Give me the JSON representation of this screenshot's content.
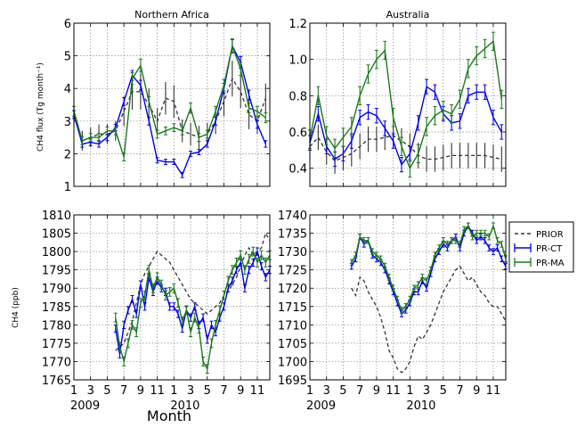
{
  "figure": {
    "xlabel": "Month",
    "ylabel_top": "CH4 flux (Tg month⁻¹)",
    "ylabel_bottom": "CH4 (ppb)",
    "month_ticks": [
      "1",
      "3",
      "5",
      "7",
      "9",
      "11",
      "1",
      "3",
      "5",
      "7",
      "9",
      "11"
    ],
    "year_labels": [
      "2009",
      "2010"
    ]
  },
  "legend": {
    "entries": [
      {
        "label": "PRIOR",
        "style": "dashed",
        "color": "#333333"
      },
      {
        "label": "PR-CT",
        "style": "errorbar",
        "color": "#0000ee"
      },
      {
        "label": "PR-MA",
        "style": "errorbar",
        "color": "#1a7a1a"
      }
    ],
    "placement": "right of bottom-right panel"
  },
  "chart_data": [
    {
      "type": "line",
      "title": "Northern  Africa",
      "ylim": [
        1,
        6
      ],
      "yticks": [
        "1",
        "2",
        "3",
        "4",
        "5",
        "6"
      ],
      "xlim": [
        1,
        24.5
      ],
      "x": [
        1,
        2,
        3,
        4,
        5,
        6,
        7,
        8,
        9,
        10,
        11,
        12,
        13,
        14,
        15,
        16,
        17,
        18,
        19,
        20,
        21,
        22,
        23,
        24
      ],
      "series": [
        {
          "name": "PRIOR",
          "style": "errorbar-dashed",
          "color": "#333333",
          "values": [
            3.3,
            2.4,
            2.5,
            2.6,
            2.6,
            2.7,
            3.3,
            3.9,
            3.9,
            3.5,
            3.0,
            3.7,
            3.6,
            2.7,
            2.6,
            2.5,
            2.6,
            3.0,
            3.6,
            4.3,
            3.9,
            3.2,
            3.0,
            3.7
          ],
          "err": [
            0.45,
            0.3,
            0.3,
            0.3,
            0.3,
            0.3,
            0.45,
            0.55,
            0.55,
            0.5,
            0.4,
            0.5,
            0.5,
            0.35,
            0.35,
            0.35,
            0.35,
            0.4,
            0.45,
            0.55,
            0.5,
            0.45,
            0.4,
            0.45
          ]
        },
        {
          "name": "PR-CT",
          "style": "errorbar",
          "color": "#0000ee",
          "values": [
            3.2,
            2.3,
            2.35,
            2.3,
            2.5,
            2.8,
            3.6,
            4.4,
            4.1,
            3.0,
            1.8,
            1.75,
            1.75,
            1.35,
            2.0,
            2.05,
            2.3,
            3.0,
            4.0,
            5.3,
            4.8,
            3.8,
            2.9,
            2.3
          ],
          "err": [
            0.12,
            0.1,
            0.1,
            0.1,
            0.1,
            0.1,
            0.12,
            0.15,
            0.15,
            0.12,
            0.08,
            0.08,
            0.08,
            0.08,
            0.08,
            0.08,
            0.1,
            0.12,
            0.15,
            0.2,
            0.18,
            0.15,
            0.12,
            0.1
          ]
        },
        {
          "name": "PR-MA",
          "style": "errorbar",
          "color": "#1a7a1a",
          "values": [
            3.3,
            2.4,
            2.5,
            2.5,
            2.7,
            2.7,
            1.9,
            4.3,
            4.7,
            3.6,
            2.6,
            2.7,
            2.8,
            2.7,
            3.4,
            2.5,
            2.6,
            3.3,
            4.1,
            5.3,
            4.6,
            3.4,
            3.3,
            3.1
          ],
          "err": [
            0.15,
            0.12,
            0.12,
            0.12,
            0.12,
            0.12,
            0.12,
            0.18,
            0.2,
            0.15,
            0.12,
            0.12,
            0.12,
            0.12,
            0.15,
            0.12,
            0.12,
            0.15,
            0.18,
            0.22,
            0.2,
            0.15,
            0.15,
            0.15
          ]
        }
      ]
    },
    {
      "type": "line",
      "title": "Australia",
      "ylim": [
        0.3,
        1.2
      ],
      "yticks": [
        "0.4",
        "0.6",
        "0.8",
        "1.0",
        "1.2"
      ],
      "xlim": [
        1,
        24.5
      ],
      "x": [
        1,
        2,
        3,
        4,
        5,
        6,
        7,
        8,
        9,
        10,
        11,
        12,
        13,
        14,
        15,
        16,
        17,
        18,
        19,
        20,
        21,
        22,
        23,
        24
      ],
      "series": [
        {
          "name": "PRIOR",
          "style": "errorbar-dashed",
          "color": "#333333",
          "values": [
            0.52,
            0.57,
            0.49,
            0.44,
            0.46,
            0.48,
            0.52,
            0.56,
            0.56,
            0.57,
            0.58,
            0.55,
            0.52,
            0.47,
            0.45,
            0.45,
            0.46,
            0.47,
            0.47,
            0.47,
            0.47,
            0.47,
            0.46,
            0.45
          ],
          "err": [
            0.07,
            0.07,
            0.07,
            0.07,
            0.07,
            0.07,
            0.07,
            0.07,
            0.07,
            0.07,
            0.07,
            0.07,
            0.07,
            0.07,
            0.07,
            0.07,
            0.07,
            0.07,
            0.07,
            0.07,
            0.07,
            0.07,
            0.07,
            0.07
          ]
        },
        {
          "name": "PR-CT",
          "style": "errorbar",
          "color": "#0000ee",
          "values": [
            0.54,
            0.7,
            0.52,
            0.45,
            0.48,
            0.55,
            0.68,
            0.71,
            0.69,
            0.62,
            0.55,
            0.42,
            0.48,
            0.65,
            0.85,
            0.82,
            0.7,
            0.65,
            0.66,
            0.8,
            0.82,
            0.82,
            0.68,
            0.6
          ],
          "err": [
            0.04,
            0.04,
            0.04,
            0.04,
            0.04,
            0.04,
            0.04,
            0.04,
            0.04,
            0.04,
            0.04,
            0.04,
            0.04,
            0.04,
            0.04,
            0.04,
            0.04,
            0.04,
            0.04,
            0.04,
            0.04,
            0.04,
            0.04,
            0.04
          ]
        },
        {
          "name": "PR-MA",
          "style": "errorbar",
          "color": "#1a7a1a",
          "values": [
            0.56,
            0.8,
            0.58,
            0.51,
            0.57,
            0.63,
            0.8,
            0.92,
            1.0,
            1.05,
            0.68,
            0.52,
            0.4,
            0.48,
            0.63,
            0.69,
            0.72,
            0.7,
            0.78,
            0.95,
            1.02,
            1.06,
            1.1,
            0.78
          ],
          "err": [
            0.05,
            0.05,
            0.05,
            0.05,
            0.05,
            0.05,
            0.05,
            0.05,
            0.05,
            0.05,
            0.05,
            0.05,
            0.05,
            0.05,
            0.05,
            0.05,
            0.05,
            0.05,
            0.05,
            0.05,
            0.05,
            0.05,
            0.05,
            0.05
          ]
        }
      ]
    },
    {
      "type": "line",
      "title": "",
      "ylim": [
        1765,
        1810
      ],
      "yticks": [
        "1765",
        "1770",
        "1775",
        "1780",
        "1785",
        "1790",
        "1795",
        "1800",
        "1805",
        "1810"
      ],
      "xlim": [
        1,
        24.5
      ],
      "x": [
        6,
        6.5,
        7,
        7.5,
        8,
        8.5,
        9,
        9.5,
        10,
        10.5,
        11,
        11.5,
        12,
        12.5,
        13,
        13.5,
        14,
        14.5,
        15,
        15.5,
        16,
        16.5,
        17,
        17.5,
        18,
        18.5,
        19,
        19.5,
        20,
        20.5,
        21,
        21.5,
        22,
        22.5,
        23,
        23.5,
        24,
        24.5
      ],
      "series": [
        {
          "name": "PRIOR",
          "style": "dashed",
          "color": "#333333",
          "values": [
            1773,
            1774,
            1775,
            1778,
            1781,
            1786,
            1791,
            1794,
            1796,
            1798,
            1800,
            1799,
            1798,
            1797,
            1795,
            1793,
            1791,
            1789,
            1787,
            1786,
            1785,
            1784,
            1783,
            1784,
            1785,
            1786,
            1788,
            1789,
            1791,
            1793,
            1796,
            1799,
            1801,
            1799,
            1800,
            1801,
            1805,
            1803
          ]
        },
        {
          "name": "PR-CT",
          "style": "errorbar",
          "color": "#0000ee",
          "values": [
            1779,
            1772,
            1780,
            1784,
            1787,
            1783,
            1791,
            1785,
            1793,
            1789,
            1792,
            1790,
            1789,
            1785,
            1785,
            1783,
            1779,
            1784,
            1782,
            1785,
            1780,
            1782,
            1776,
            1780,
            1778,
            1782,
            1785,
            1790,
            1792,
            1795,
            1797,
            1790,
            1795,
            1797,
            1800,
            1796,
            1793,
            1795
          ],
          "err": [
            1,
            1,
            1,
            1,
            1,
            1,
            1,
            1,
            1,
            1,
            1,
            1,
            1,
            1,
            1,
            1,
            1,
            1,
            1,
            1,
            1,
            1,
            1,
            1,
            1,
            1,
            1,
            1,
            1,
            1,
            1,
            1,
            1,
            1,
            1,
            1,
            1,
            1
          ]
        },
        {
          "name": "PR-MA",
          "style": "errorbar",
          "color": "#1a7a1a",
          "values": [
            1782,
            1774,
            1770,
            1775,
            1780,
            1778,
            1786,
            1788,
            1795,
            1790,
            1793,
            1791,
            1788,
            1789,
            1790,
            1786,
            1781,
            1784,
            1778,
            1782,
            1779,
            1770,
            1768,
            1775,
            1780,
            1784,
            1788,
            1792,
            1795,
            1797,
            1799,
            1795,
            1798,
            1800,
            1797,
            1799,
            1797,
            1799
          ],
          "err": [
            1.2,
            1.2,
            1.2,
            1.2,
            1.2,
            1.2,
            1.2,
            1.2,
            1.2,
            1.2,
            1.2,
            1.2,
            1.2,
            1.2,
            1.2,
            1.2,
            1.2,
            1.2,
            1.2,
            1.2,
            1.2,
            1.2,
            1.2,
            1.2,
            1.2,
            1.2,
            1.2,
            1.2,
            1.2,
            1.2,
            1.2,
            1.2,
            1.2,
            1.2,
            1.2,
            1.2,
            1.2,
            1.2
          ]
        }
      ]
    },
    {
      "type": "line",
      "title": "",
      "ylim": [
        1695,
        1740
      ],
      "yticks": [
        "1695",
        "1700",
        "1705",
        "1710",
        "1715",
        "1720",
        "1725",
        "1730",
        "1735",
        "1740"
      ],
      "xlim": [
        1,
        24.5
      ],
      "x": [
        6,
        6.5,
        7,
        7.5,
        8,
        8.5,
        9,
        9.5,
        10,
        10.5,
        11,
        11.5,
        12,
        12.5,
        13,
        13.5,
        14,
        14.5,
        15,
        15.5,
        16,
        16.5,
        17,
        17.5,
        18,
        18.5,
        19,
        19.5,
        20,
        20.5,
        21,
        21.5,
        22,
        22.5,
        23,
        23.5,
        24,
        24.5
      ],
      "series": [
        {
          "name": "PRIOR",
          "style": "dashed",
          "color": "#333333",
          "values": [
            1720,
            1718,
            1723,
            1722,
            1719,
            1717,
            1715,
            1712,
            1708,
            1703,
            1701,
            1698,
            1697,
            1698,
            1700,
            1704,
            1707,
            1706,
            1708,
            1710,
            1713,
            1716,
            1719,
            1721,
            1723,
            1725,
            1726,
            1724,
            1722,
            1723,
            1721,
            1719,
            1718,
            1716,
            1715,
            1715,
            1713,
            1711
          ]
        },
        {
          "name": "PR-CT",
          "style": "errorbar",
          "color": "#0000ee",
          "values": [
            1726,
            1728,
            1734,
            1732,
            1733,
            1729,
            1728,
            1727,
            1725,
            1722,
            1719,
            1716,
            1713,
            1714,
            1716,
            1719,
            1719,
            1722,
            1720,
            1724,
            1728,
            1730,
            1732,
            1731,
            1733,
            1734,
            1731,
            1735,
            1737,
            1735,
            1733,
            1734,
            1733,
            1731,
            1730,
            1731,
            1728,
            1726
          ],
          "err": [
            0.8,
            0.8,
            0.8,
            0.8,
            0.8,
            0.8,
            0.8,
            0.8,
            0.8,
            0.8,
            0.8,
            0.8,
            0.8,
            0.8,
            0.8,
            0.8,
            0.8,
            0.8,
            0.8,
            0.8,
            0.8,
            0.8,
            0.8,
            0.8,
            0.8,
            0.8,
            0.8,
            0.8,
            0.8,
            0.8,
            0.8,
            0.8,
            0.8,
            0.8,
            0.8,
            0.8,
            0.8,
            0.8
          ]
        },
        {
          "name": "PR-MA",
          "style": "errorbar",
          "color": "#1a7a1a",
          "values": [
            1727,
            1729,
            1734,
            1733,
            1733,
            1730,
            1729,
            1728,
            1726,
            1723,
            1720,
            1717,
            1714,
            1715,
            1717,
            1720,
            1721,
            1723,
            1722,
            1725,
            1729,
            1731,
            1733,
            1732,
            1733,
            1733,
            1732,
            1736,
            1737,
            1734,
            1735,
            1735,
            1735,
            1734,
            1737,
            1733,
            1732,
            1728
          ],
          "err": [
            0.8,
            0.8,
            0.8,
            0.8,
            0.8,
            0.8,
            0.8,
            0.8,
            0.8,
            0.8,
            0.8,
            0.8,
            0.8,
            0.8,
            0.8,
            0.8,
            0.8,
            0.8,
            0.8,
            0.8,
            0.8,
            0.8,
            0.8,
            0.8,
            0.8,
            0.8,
            0.8,
            0.8,
            0.8,
            0.8,
            0.8,
            0.8,
            0.8,
            0.8,
            0.8,
            0.8,
            0.8,
            0.8
          ]
        }
      ]
    }
  ]
}
